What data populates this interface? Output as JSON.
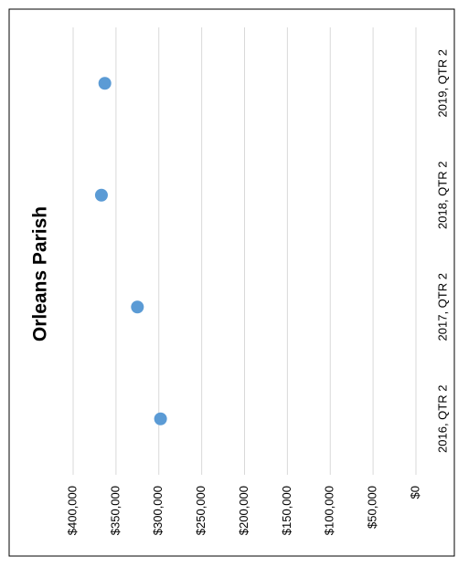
{
  "chart_data": {
    "type": "line",
    "title": "Orleans Parish",
    "categories": [
      "2016, QTR 2",
      "2017, QTR 2",
      "2018, QTR 2",
      "2019, QTR 2"
    ],
    "series": [
      {
        "name": "Orleans Parish",
        "color": "#5b9bd5",
        "values": [
          298000,
          325000,
          367000,
          363000
        ]
      }
    ],
    "ylim": [
      0,
      400000
    ],
    "yticks": [
      {
        "value": 0,
        "label": "$0"
      },
      {
        "value": 50000,
        "label": "$50,000"
      },
      {
        "value": 100000,
        "label": "$100,000"
      },
      {
        "value": 150000,
        "label": "$150,000"
      },
      {
        "value": 200000,
        "label": "$200,000"
      },
      {
        "value": 250000,
        "label": "$250,000"
      },
      {
        "value": 300000,
        "label": "$300,000"
      },
      {
        "value": 350000,
        "label": "$350,000"
      },
      {
        "value": 400000,
        "label": "$400,000"
      }
    ],
    "grid": true
  }
}
